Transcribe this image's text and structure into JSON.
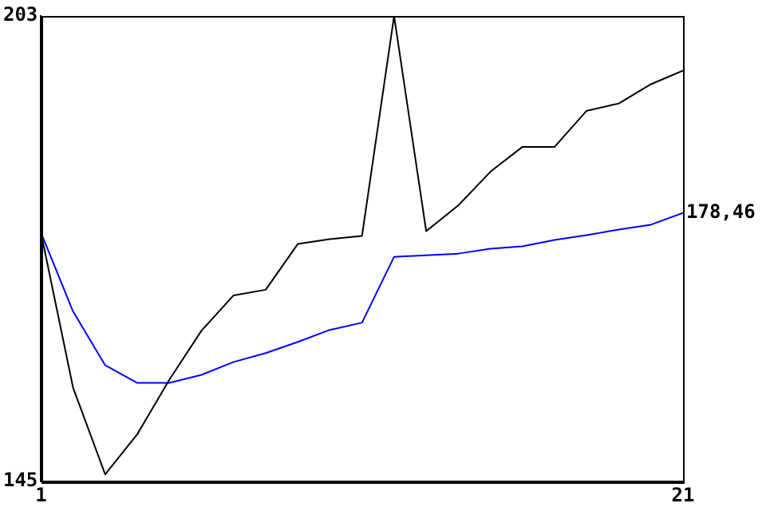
{
  "chart_data": {
    "type": "line",
    "x": [
      1,
      2,
      3,
      4,
      5,
      6,
      7,
      8,
      9,
      10,
      11,
      12,
      13,
      14,
      15,
      16,
      17,
      18,
      19,
      20,
      21
    ],
    "series": [
      {
        "color": "#000000",
        "values": [
          176.0,
          156.7,
          145.9,
          150.9,
          157.7,
          163.8,
          168.2,
          168.9,
          174.6,
          175.2,
          175.6,
          203.0,
          176.2,
          179.4,
          183.6,
          186.7,
          186.7,
          191.2,
          192.1,
          194.5,
          196.2
        ]
      },
      {
        "color": "#0000ff",
        "values": [
          176.0,
          166.2,
          159.5,
          157.3,
          157.3,
          158.3,
          159.9,
          161.0,
          162.4,
          163.9,
          164.8,
          173.0,
          173.2,
          173.4,
          174.0,
          174.3,
          175.1,
          175.7,
          176.4,
          177.0,
          178.46
        ]
      }
    ],
    "xlim": [
      1,
      21
    ],
    "xticks": [
      1,
      21
    ],
    "ylim": [
      145,
      203
    ],
    "yticks": [
      145,
      203
    ],
    "annotations": [
      {
        "text": "178,46",
        "x": 21,
        "y": 178.46
      }
    ],
    "grid": false,
    "legend": false,
    "marker": "none",
    "line_style": "solid"
  }
}
